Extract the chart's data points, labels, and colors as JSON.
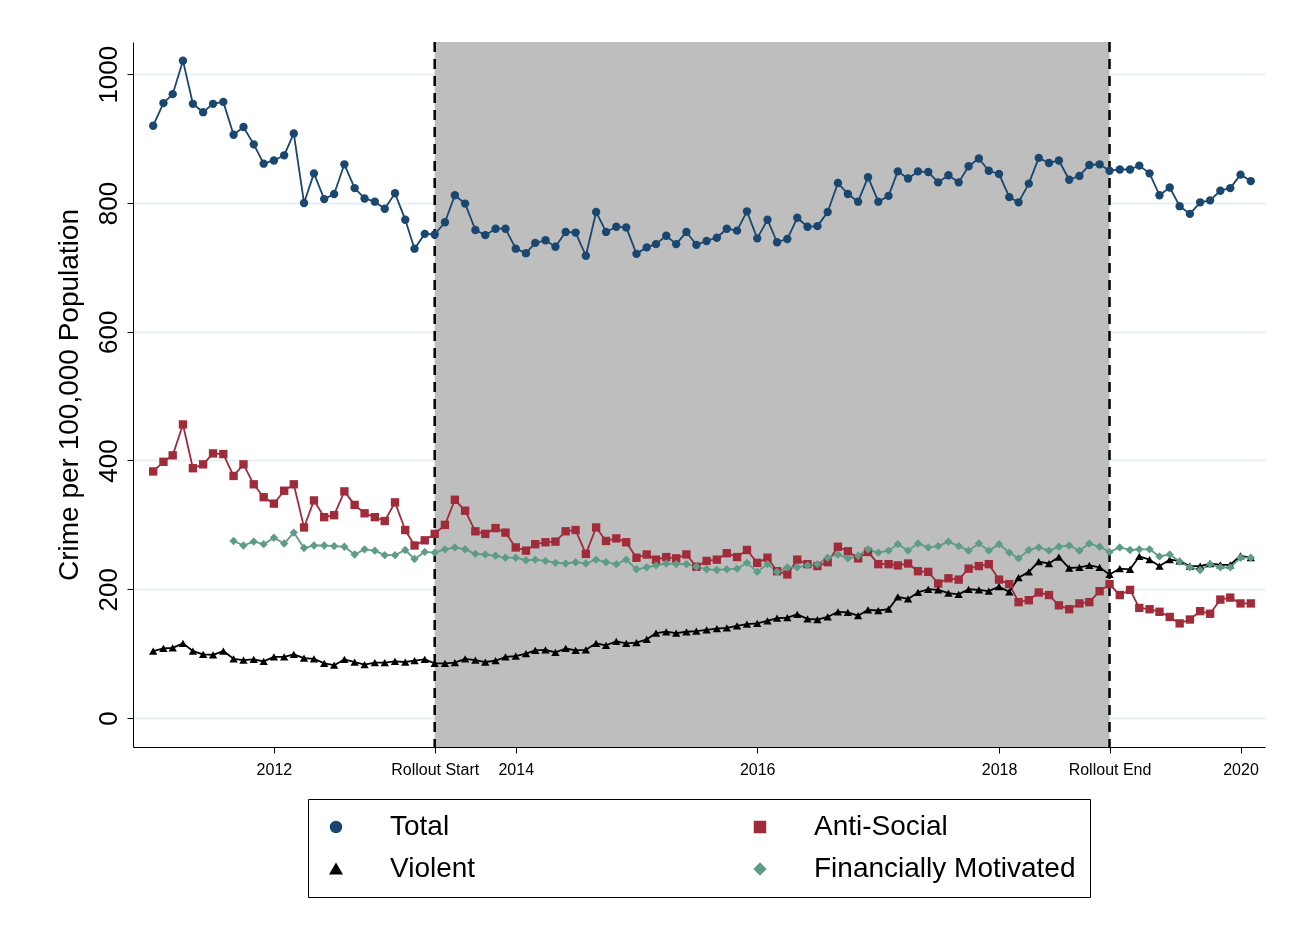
{
  "chart_data": {
    "type": "line",
    "ylabel": "Crime per 100,000 Population",
    "x": [
      "2011-01",
      "2011-02",
      "2011-03",
      "2011-04",
      "2011-05",
      "2011-06",
      "2011-07",
      "2011-08",
      "2011-09",
      "2011-10",
      "2011-11",
      "2011-12",
      "2012-01",
      "2012-02",
      "2012-03",
      "2012-04",
      "2012-05",
      "2012-06",
      "2012-07",
      "2012-08",
      "2012-09",
      "2012-10",
      "2012-11",
      "2012-12",
      "2013-01",
      "2013-02",
      "2013-03",
      "2013-04",
      "2013-05",
      "2013-06",
      "2013-07",
      "2013-08",
      "2013-09",
      "2013-10",
      "2013-11",
      "2013-12",
      "2014-01",
      "2014-02",
      "2014-03",
      "2014-04",
      "2014-05",
      "2014-06",
      "2014-07",
      "2014-08",
      "2014-09",
      "2014-10",
      "2014-11",
      "2014-12",
      "2015-01",
      "2015-02",
      "2015-03",
      "2015-04",
      "2015-05",
      "2015-06",
      "2015-07",
      "2015-08",
      "2015-09",
      "2015-10",
      "2015-11",
      "2015-12",
      "2016-01",
      "2016-02",
      "2016-03",
      "2016-04",
      "2016-05",
      "2016-06",
      "2016-07",
      "2016-08",
      "2016-09",
      "2016-10",
      "2016-11",
      "2016-12",
      "2017-01",
      "2017-02",
      "2017-03",
      "2017-04",
      "2017-05",
      "2017-06",
      "2017-07",
      "2017-08",
      "2017-09",
      "2017-10",
      "2017-11",
      "2017-12",
      "2018-01",
      "2018-02",
      "2018-03",
      "2018-04",
      "2018-05",
      "2018-06",
      "2018-07",
      "2018-08",
      "2018-09",
      "2018-10",
      "2018-11",
      "2018-12",
      "2019-01",
      "2019-02",
      "2019-03",
      "2019-04",
      "2019-05",
      "2019-06",
      "2019-07",
      "2019-08",
      "2019-09",
      "2019-10",
      "2019-11",
      "2019-12",
      "2020-01",
      "2020-02"
    ],
    "series": [
      {
        "name": "Total",
        "color": "#1a476f",
        "marker": "circle",
        "values": [
          920,
          955,
          969,
          1021,
          954,
          941,
          954,
          957,
          906,
          918,
          891,
          861,
          866,
          874,
          908,
          800,
          846,
          806,
          814,
          860,
          823,
          807,
          802,
          791,
          815,
          774,
          729,
          752,
          751,
          770,
          812,
          799,
          758,
          750,
          760,
          760,
          729,
          722,
          738,
          742,
          732,
          755,
          754,
          718,
          786,
          755,
          763,
          762,
          721,
          731,
          736,
          749,
          736,
          755,
          735,
          741,
          746,
          760,
          757,
          787,
          745,
          774,
          739,
          744,
          777,
          763,
          764,
          786,
          831,
          814,
          802,
          840,
          802,
          811,
          849,
          838,
          849,
          848,
          832,
          843,
          832,
          857,
          869,
          850,
          845,
          809,
          801,
          830,
          870,
          862,
          866,
          836,
          842,
          859,
          860,
          850,
          852,
          852,
          858,
          846,
          812,
          824,
          795,
          783,
          801,
          804,
          819,
          823,
          844,
          834
        ]
      },
      {
        "name": "Anti-Social",
        "color": "#a02b3a",
        "marker": "square",
        "values": [
          383,
          398,
          408,
          456,
          388,
          394,
          411,
          410,
          376,
          394,
          363,
          343,
          333,
          353,
          363,
          296,
          338,
          312,
          315,
          352,
          331,
          318,
          312,
          306,
          335,
          292,
          268,
          276,
          286,
          300,
          339,
          322,
          290,
          286,
          295,
          288,
          265,
          260,
          270,
          273,
          274,
          290,
          292,
          255,
          296,
          275,
          279,
          273,
          249,
          254,
          246,
          250,
          248,
          254,
          235,
          244,
          246,
          256,
          250,
          261,
          241,
          249,
          228,
          223,
          246,
          239,
          236,
          242,
          266,
          259,
          248,
          258,
          239,
          239,
          237,
          240,
          228,
          227,
          209,
          217,
          215,
          232,
          236,
          239,
          215,
          208,
          180,
          183,
          195,
          191,
          175,
          169,
          178,
          180,
          197,
          208,
          191,
          199,
          171,
          169,
          165,
          157,
          147,
          153,
          166,
          162,
          184,
          187,
          178,
          178
        ]
      },
      {
        "name": "Violent",
        "color": "#000000",
        "marker": "triangle",
        "values": [
          104,
          108,
          109,
          116,
          104,
          99,
          98,
          104,
          92,
          90,
          91,
          88,
          95,
          95,
          99,
          93,
          92,
          85,
          82,
          91,
          87,
          83,
          86,
          86,
          88,
          87,
          89,
          91,
          85,
          85,
          86,
          92,
          90,
          87,
          89,
          95,
          96,
          100,
          105,
          106,
          102,
          108,
          105,
          106,
          116,
          113,
          119,
          116,
          117,
          122,
          132,
          134,
          132,
          134,
          135,
          137,
          139,
          140,
          143,
          146,
          147,
          151,
          155,
          156,
          161,
          154,
          153,
          157,
          165,
          164,
          159,
          168,
          167,
          169,
          188,
          185,
          195,
          200,
          199,
          194,
          192,
          200,
          199,
          197,
          204,
          196,
          218,
          227,
          243,
          240,
          250,
          233,
          234,
          237,
          234,
          223,
          232,
          231,
          251,
          246,
          236,
          246,
          244,
          236,
          236,
          240,
          238,
          238,
          252,
          249
        ]
      },
      {
        "name": "Financially Motivated",
        "color": "#5e9c86",
        "marker": "diamond",
        "values": [
          null,
          null,
          null,
          null,
          null,
          null,
          null,
          null,
          275,
          268,
          274,
          270,
          280,
          271,
          288,
          264,
          268,
          268,
          267,
          266,
          254,
          262,
          260,
          253,
          253,
          261,
          247,
          258,
          257,
          262,
          265,
          262,
          255,
          254,
          252,
          249,
          249,
          245,
          246,
          244,
          241,
          240,
          242,
          240,
          246,
          242,
          239,
          246,
          231,
          234,
          237,
          240,
          239,
          239,
          235,
          231,
          230,
          231,
          232,
          241,
          227,
          239,
          227,
          234,
          234,
          237,
          239,
          249,
          254,
          248,
          252,
          262,
          257,
          260,
          270,
          260,
          271,
          265,
          267,
          274,
          267,
          260,
          271,
          260,
          270,
          257,
          248,
          261,
          265,
          260,
          266,
          268,
          260,
          271,
          266,
          258,
          265,
          261,
          262,
          262,
          251,
          254,
          243,
          234,
          230,
          239,
          234,
          234,
          249,
          249
        ]
      }
    ],
    "xlim": [
      "2010-11",
      "2020-03-15"
    ],
    "xticks": [
      {
        "value": "2012-01",
        "label": "2012"
      },
      {
        "value": "2013-05",
        "label": "Rollout Start"
      },
      {
        "value": "2014-01",
        "label": "2014"
      },
      {
        "value": "2016-01",
        "label": "2016"
      },
      {
        "value": "2018-01",
        "label": "2018"
      },
      {
        "value": "2018-12",
        "label": "Rollout End"
      },
      {
        "value": "2020-01",
        "label": "2020"
      }
    ],
    "ylim": [
      -45,
      1050
    ],
    "yticks": [
      0,
      200,
      400,
      600,
      800,
      1000
    ],
    "bands": [
      {
        "axis": "x",
        "from": "2013-05",
        "to": "2018-12",
        "color": "#bebebe"
      }
    ],
    "ref_lines": [
      {
        "axis": "x",
        "value": "2013-05",
        "color": "#000000",
        "line_style": "dashed"
      },
      {
        "axis": "x",
        "value": "2018-12",
        "color": "#000000",
        "line_style": "dashed"
      }
    ],
    "grid": "y",
    "legend": "bottom"
  }
}
